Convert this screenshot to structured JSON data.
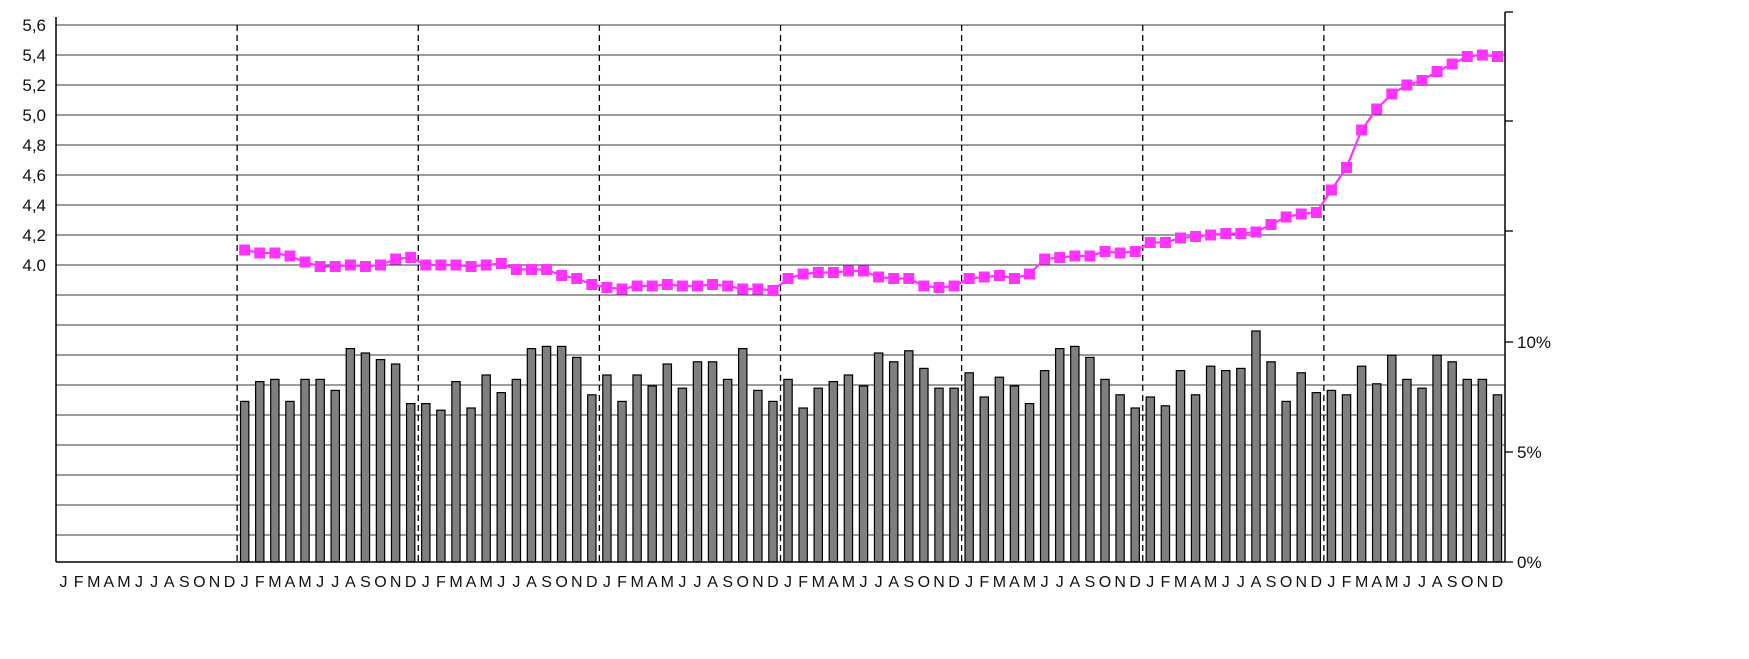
{
  "chart_data": {
    "type": "bar+line",
    "title": "",
    "xlabel": "",
    "ylabel_left": "",
    "ylabel_right": "",
    "left_axis": {
      "range": [
        3.8,
        5.6
      ],
      "ticks": [
        "5,6",
        "5,4",
        "5,2",
        "5,0",
        "4,8",
        "4,6",
        "4,4",
        "4,2",
        "4.0"
      ],
      "tick_values": [
        5.6,
        5.4,
        5.2,
        5.0,
        4.8,
        4.6,
        4.4,
        4.2,
        4.0
      ]
    },
    "right_axis": {
      "range": [
        0,
        10
      ],
      "ticks": [
        "10%",
        "5%",
        "0%"
      ],
      "tick_values": [
        10,
        5,
        0
      ]
    },
    "gridlines": true,
    "month_letters": [
      "J",
      "F",
      "M",
      "A",
      "M",
      "J",
      "J",
      "A",
      "S",
      "O",
      "N",
      "D"
    ],
    "years": 8,
    "line_series": {
      "name": "",
      "color": "#ff33ff",
      "start_index": 12,
      "values": [
        4.1,
        4.08,
        4.08,
        4.06,
        4.02,
        3.99,
        3.99,
        4.0,
        3.99,
        4.0,
        4.04,
        4.05,
        4.0,
        4.0,
        4.0,
        3.99,
        4.0,
        4.01,
        3.97,
        3.97,
        3.97,
        3.93,
        3.91,
        3.87,
        3.85,
        3.84,
        3.86,
        3.86,
        3.87,
        3.86,
        3.86,
        3.87,
        3.86,
        3.84,
        3.84,
        3.83,
        3.91,
        3.94,
        3.95,
        3.95,
        3.96,
        3.96,
        3.92,
        3.91,
        3.91,
        3.86,
        3.85,
        3.86,
        3.91,
        3.92,
        3.93,
        3.91,
        3.94,
        4.04,
        4.05,
        4.06,
        4.06,
        4.09,
        4.08,
        4.09,
        4.15,
        4.15,
        4.18,
        4.19,
        4.2,
        4.21,
        4.21,
        4.22,
        4.27,
        4.32,
        4.34,
        4.35,
        4.5,
        4.65,
        4.9,
        5.04,
        5.14,
        5.2,
        5.23,
        5.29,
        5.34,
        5.39,
        5.4,
        5.39
      ]
    },
    "bar_series": {
      "name": "",
      "color": "#7f7f7f",
      "start_index": 12,
      "values": [
        7.3,
        8.2,
        8.3,
        7.3,
        8.3,
        8.3,
        7.8,
        9.7,
        9.5,
        9.2,
        9.0,
        7.2,
        7.2,
        6.9,
        8.2,
        7.0,
        8.5,
        7.7,
        8.3,
        9.7,
        9.8,
        9.8,
        9.3,
        7.6,
        8.5,
        7.3,
        8.5,
        8.0,
        9.0,
        7.9,
        9.1,
        9.1,
        8.3,
        9.7,
        7.8,
        7.3,
        8.3,
        7.0,
        7.9,
        8.2,
        8.5,
        8.0,
        9.5,
        9.1,
        9.6,
        8.8,
        7.9,
        7.9,
        8.6,
        7.5,
        8.4,
        8.0,
        7.2,
        8.7,
        9.7,
        9.8,
        9.3,
        8.3,
        7.6,
        7.0,
        7.5,
        7.1,
        8.7,
        7.6,
        8.9,
        8.7,
        8.8,
        10.5,
        9.1,
        7.3,
        8.6,
        7.7,
        7.8,
        7.6,
        8.9,
        8.1,
        9.4,
        8.3,
        7.9,
        9.4,
        9.1,
        8.3,
        8.3,
        7.6
      ]
    }
  }
}
